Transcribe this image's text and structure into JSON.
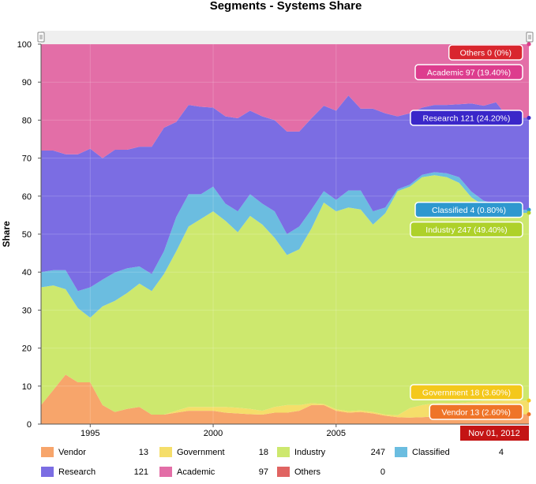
{
  "chart_data": {
    "type": "area",
    "stacked": true,
    "title": "Segments - Systems Share",
    "xlabel": "",
    "ylabel": "Share",
    "ylim": [
      0,
      100
    ],
    "yticks": [
      0,
      10,
      20,
      30,
      40,
      50,
      60,
      70,
      80,
      90,
      100
    ],
    "xlim": [
      1993.0,
      2012.84
    ],
    "xtick_labels": [
      "1995",
      "2000",
      "2005"
    ],
    "xtick_values": [
      1995,
      2000,
      2005
    ],
    "cursor_date": "Nov 01, 2012",
    "x": [
      1993.0,
      1993.5,
      1994.0,
      1994.5,
      1995.0,
      1995.5,
      1996.0,
      1996.5,
      1997.0,
      1997.5,
      1998.0,
      1998.5,
      1999.0,
      1999.5,
      2000.0,
      2000.5,
      2001.0,
      2001.5,
      2002.0,
      2002.5,
      2003.0,
      2003.5,
      2004.0,
      2004.5,
      2005.0,
      2005.5,
      2006.0,
      2006.5,
      2007.0,
      2007.5,
      2008.0,
      2008.5,
      2009.0,
      2009.5,
      2010.0,
      2010.5,
      2011.0,
      2011.5,
      2012.0,
      2012.5,
      2012.84
    ],
    "series": [
      {
        "name": "Vendor",
        "color": "#f7a56b",
        "legend_value": "13",
        "values": [
          5.0,
          9.0,
          13.0,
          11.0,
          11.0,
          5.0,
          3.2,
          4.0,
          4.5,
          2.5,
          2.5,
          3.0,
          3.5,
          3.5,
          3.5,
          3.0,
          2.8,
          2.6,
          2.5,
          3.0,
          3.0,
          3.5,
          5.0,
          5.0,
          3.5,
          3.0,
          3.2,
          2.8,
          2.2,
          1.8,
          1.7,
          1.8,
          2.0,
          2.0,
          2.0,
          2.2,
          2.5,
          2.5,
          2.6,
          2.6,
          2.6
        ]
      },
      {
        "name": "Government",
        "color": "#f5de6a",
        "legend_value": "18",
        "values": [
          0.0,
          0.0,
          0.0,
          0.0,
          0.0,
          0.0,
          0.0,
          0.0,
          0.0,
          0.0,
          0.0,
          0.5,
          1.0,
          1.0,
          1.0,
          1.5,
          1.5,
          1.4,
          1.0,
          1.5,
          2.0,
          1.5,
          0.5,
          0.3,
          0.4,
          0.4,
          0.4,
          0.4,
          0.3,
          0.5,
          2.5,
          3.2,
          3.5,
          3.6,
          3.6,
          3.6,
          3.6,
          3.6,
          3.6,
          3.6,
          3.6
        ]
      },
      {
        "name": "Industry",
        "color": "#cde86e",
        "legend_value": "247",
        "values": [
          31.0,
          27.5,
          22.5,
          19.5,
          17.0,
          26.0,
          29.2,
          30.5,
          32.5,
          32.5,
          37.0,
          42.0,
          47.5,
          49.5,
          51.5,
          49.0,
          46.2,
          50.8,
          49.0,
          44.5,
          39.5,
          41.0,
          46.0,
          53.0,
          52.1,
          53.6,
          52.9,
          49.3,
          53.0,
          59.0,
          58.3,
          60.0,
          60.0,
          59.4,
          57.9,
          53.9,
          51.4,
          50.8,
          49.4,
          49.4,
          49.4
        ]
      },
      {
        "name": "Classified",
        "color": "#6bbde0",
        "legend_value": "4",
        "values": [
          4.0,
          4.0,
          5.0,
          4.5,
          8.0,
          7.0,
          7.5,
          6.5,
          4.5,
          4.5,
          6.0,
          9.0,
          8.5,
          6.5,
          6.5,
          4.5,
          5.5,
          5.7,
          5.5,
          7.0,
          5.5,
          6.0,
          5.0,
          3.0,
          3.0,
          4.5,
          5.0,
          3.5,
          1.5,
          0.5,
          0.5,
          0.6,
          0.8,
          1.0,
          1.5,
          1.5,
          1.3,
          1.0,
          0.8,
          0.8,
          0.8
        ]
      },
      {
        "name": "Research",
        "color": "#7b6de3",
        "legend_value": "121",
        "values": [
          32.0,
          31.5,
          30.5,
          36.0,
          36.5,
          32.0,
          32.3,
          31.2,
          31.5,
          33.5,
          32.5,
          25.0,
          23.5,
          23.0,
          20.8,
          23.0,
          24.5,
          22.0,
          23.0,
          24.0,
          27.0,
          25.0,
          24.0,
          22.5,
          23.5,
          25.0,
          21.5,
          27.0,
          24.8,
          19.2,
          18.8,
          17.7,
          17.7,
          18.0,
          19.2,
          23.2,
          25.0,
          26.8,
          24.2,
          24.2,
          24.2
        ]
      },
      {
        "name": "Academic",
        "color": "#e36ea7",
        "legend_value": "97",
        "values": [
          28.0,
          28.0,
          29.0,
          29.0,
          27.5,
          30.0,
          27.8,
          27.8,
          27.0,
          27.0,
          22.0,
          20.5,
          16.0,
          16.5,
          16.7,
          19.0,
          19.5,
          17.5,
          19.0,
          20.0,
          23.0,
          23.0,
          19.5,
          16.2,
          17.5,
          13.5,
          17.0,
          17.0,
          18.2,
          19.0,
          18.2,
          16.7,
          16.0,
          16.0,
          15.8,
          15.6,
          16.2,
          15.3,
          19.4,
          19.4,
          19.4
        ]
      },
      {
        "name": "Others",
        "color": "#e06462",
        "legend_value": "0",
        "values": [
          0,
          0,
          0,
          0,
          0,
          0,
          0,
          0,
          0,
          0,
          0,
          0,
          0,
          0,
          0,
          0,
          0,
          0,
          0,
          0,
          0,
          0,
          0,
          0,
          0,
          0,
          0,
          0,
          0,
          0,
          0,
          0,
          0,
          0,
          0,
          0,
          0,
          0,
          0,
          0,
          0
        ]
      }
    ],
    "bubbles": [
      {
        "series": "Others",
        "text": "Others 0 (0%)",
        "bg": "#d9262e",
        "value_top": 100
      },
      {
        "series": "Academic",
        "text": "Academic 97 (19.40%)",
        "bg": "#dd3d8e",
        "value_top": 100
      },
      {
        "series": "Research",
        "text": "Research 121 (24.20%)",
        "bg": "#3a27c9",
        "value_top": 80.6
      },
      {
        "series": "Classified",
        "text": "Classified 4 (0.80%)",
        "bg": "#2e98cf",
        "value_top": 56.4
      },
      {
        "series": "Industry",
        "text": "Industry 247 (49.40%)",
        "bg": "#aed12a",
        "value_top": 55.6
      },
      {
        "series": "Government",
        "text": "Government 18 (3.60%)",
        "bg": "#f4c81b",
        "value_top": 6.2
      },
      {
        "series": "Vendor",
        "text": "Vendor 13 (2.60%)",
        "bg": "#ef7428",
        "value_top": 2.6
      }
    ]
  },
  "legend": [
    {
      "name": "Vendor",
      "value": "13",
      "color": "#f7a56b"
    },
    {
      "name": "Government",
      "value": "18",
      "color": "#f5de6a"
    },
    {
      "name": "Industry",
      "value": "247",
      "color": "#cde86e"
    },
    {
      "name": "Classified",
      "value": "4",
      "color": "#6bbde0"
    },
    {
      "name": "Research",
      "value": "121",
      "color": "#7b6de3"
    },
    {
      "name": "Academic",
      "value": "97",
      "color": "#e36ea7"
    },
    {
      "name": "Others",
      "value": "0",
      "color": "#e06462"
    }
  ]
}
